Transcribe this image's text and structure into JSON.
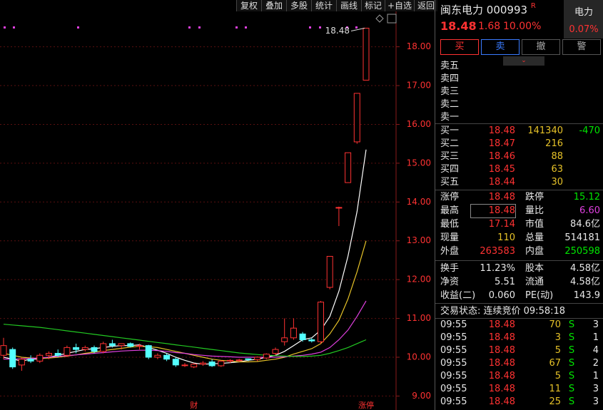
{
  "toolbar": [
    "复权",
    "叠加",
    "多股",
    "统计",
    "画线",
    "标记",
    "+自选",
    "返回"
  ],
  "chart_data": {
    "type": "candlestick",
    "open": [
      10.05,
      10.2,
      9.8,
      9.95,
      9.9,
      10.05,
      10.1,
      10.05,
      10.25,
      10.2,
      10.25,
      10.15,
      10.35,
      10.3,
      10.35,
      10.28,
      10.3,
      10.0,
      10.05,
      9.95,
      9.8,
      9.75,
      9.82,
      9.88,
      9.78,
      9.9,
      9.92,
      9.96,
      9.94,
      9.98,
      10.1,
      10.4,
      10.5,
      10.6,
      10.45,
      10.4,
      11.8,
      13.86,
      14.5,
      15.55,
      17.14
    ],
    "high": [
      10.5,
      10.25,
      10.0,
      10.05,
      10.1,
      10.15,
      10.2,
      10.3,
      10.35,
      10.3,
      10.3,
      10.4,
      10.45,
      10.35,
      10.38,
      10.35,
      10.32,
      10.1,
      10.1,
      10.0,
      9.85,
      9.85,
      9.9,
      9.95,
      9.92,
      9.95,
      9.96,
      9.97,
      10.02,
      10.1,
      10.25,
      11.0,
      11.0,
      10.65,
      10.5,
      11.45,
      12.6,
      13.88,
      15.27,
      16.8,
      18.48
    ],
    "low": [
      9.95,
      9.7,
      9.65,
      9.85,
      9.85,
      9.95,
      10.0,
      10.0,
      10.1,
      10.15,
      10.1,
      10.1,
      10.25,
      10.2,
      10.25,
      10.2,
      9.95,
      9.95,
      9.9,
      9.75,
      9.75,
      9.72,
      9.78,
      9.75,
      9.75,
      9.85,
      9.88,
      9.9,
      9.9,
      9.95,
      10.05,
      10.3,
      10.45,
      10.4,
      10.38,
      10.35,
      11.75,
      13.38,
      14.5,
      15.5,
      17.14
    ],
    "close": [
      10.3,
      9.75,
      9.95,
      9.9,
      10.05,
      10.1,
      10.05,
      10.25,
      10.2,
      10.25,
      10.15,
      10.35,
      10.3,
      10.35,
      10.28,
      10.3,
      10.0,
      10.05,
      9.95,
      9.8,
      9.8,
      9.82,
      9.85,
      9.78,
      9.9,
      9.92,
      9.93,
      9.94,
      10.0,
      10.08,
      10.2,
      10.5,
      10.75,
      10.45,
      10.42,
      11.42,
      12.6,
      13.86,
      15.27,
      16.8,
      18.48
    ],
    "up_color": "#ff3232",
    "down_color": "#54ffff",
    "series": [
      {
        "color": "#ffffff",
        "values": [
          10.0,
          9.95,
          9.9,
          9.95,
          9.95,
          10.0,
          10.05,
          10.1,
          10.15,
          10.2,
          10.22,
          10.25,
          10.28,
          10.3,
          10.3,
          10.32,
          10.25,
          10.18,
          10.1,
          10.0,
          9.92,
          9.85,
          9.82,
          9.83,
          9.84,
          9.86,
          9.88,
          9.92,
          9.95,
          10.0,
          10.05,
          10.15,
          10.3,
          10.45,
          10.5,
          10.7,
          11.05,
          11.7,
          12.6,
          13.75,
          15.35
        ]
      },
      {
        "color": "#e6c228",
        "values": [
          10.1,
          10.05,
          10.0,
          9.98,
          9.97,
          9.98,
          10.0,
          10.03,
          10.06,
          10.1,
          10.13,
          10.17,
          10.2,
          10.23,
          10.26,
          10.28,
          10.27,
          10.25,
          10.2,
          10.15,
          10.1,
          10.05,
          10.0,
          9.95,
          9.92,
          9.9,
          9.88,
          9.88,
          9.89,
          9.92,
          9.95,
          10.0,
          10.08,
          10.15,
          10.22,
          10.35,
          10.6,
          10.95,
          11.5,
          12.2,
          13.0
        ]
      },
      {
        "color": "#e040e0",
        "values": [
          9.95,
          9.95,
          9.96,
          9.97,
          9.98,
          10.0,
          10.02,
          10.04,
          10.06,
          10.08,
          10.1,
          10.12,
          10.14,
          10.16,
          10.17,
          10.18,
          10.18,
          10.17,
          10.15,
          10.12,
          10.1,
          10.07,
          10.05,
          10.03,
          10.02,
          10.01,
          10.0,
          10.0,
          10.0,
          10.0,
          10.0,
          10.01,
          10.03,
          10.05,
          10.08,
          10.13,
          10.25,
          10.45,
          10.7,
          11.05,
          11.45
        ]
      },
      {
        "color": "#22c822",
        "values": [
          10.85,
          10.83,
          10.81,
          10.79,
          10.77,
          10.74,
          10.71,
          10.68,
          10.65,
          10.62,
          10.59,
          10.56,
          10.53,
          10.5,
          10.47,
          10.44,
          10.41,
          10.38,
          10.35,
          10.32,
          10.29,
          10.26,
          10.23,
          10.2,
          10.17,
          10.14,
          10.11,
          10.09,
          10.07,
          10.05,
          10.04,
          10.03,
          10.02,
          10.02,
          10.03,
          10.05,
          10.1,
          10.17,
          10.25,
          10.35,
          10.45
        ]
      }
    ],
    "ylim": [
      8.64,
      18.93
    ],
    "yticks": [
      {
        "value": 9,
        "label": "9.00"
      },
      {
        "value": 10,
        "label": "10.00"
      },
      {
        "value": 11,
        "label": "11.00"
      },
      {
        "value": 12,
        "label": "12.00"
      },
      {
        "value": 13,
        "label": "13.00"
      },
      {
        "value": 14,
        "label": "14.00"
      },
      {
        "value": 15,
        "label": "15.00"
      },
      {
        "value": 16,
        "label": "16.00"
      },
      {
        "value": 17,
        "label": "17.00"
      },
      {
        "value": 18,
        "label": "18.00"
      }
    ],
    "grid": true,
    "high_marker": {
      "value": 18.48,
      "label": "18.48"
    },
    "events": [
      {
        "index": 21,
        "label": "财"
      },
      {
        "index": 40,
        "label": "涨停"
      }
    ]
  },
  "quote": {
    "name": "闽东电力",
    "code": "000993",
    "flag": "R",
    "sector": "电力",
    "sector_change": "0.07%",
    "price": "18.48",
    "change": "1.68",
    "change_pct": "10.00%"
  },
  "buttons": [
    "买",
    "卖",
    "撤",
    "警"
  ],
  "asks": [
    "卖五",
    "卖四",
    "卖三",
    "卖二",
    "卖一"
  ],
  "bids": [
    [
      "买一",
      "18.48",
      "141340",
      "-470"
    ],
    [
      "买二",
      "18.47",
      "216"
    ],
    [
      "买三",
      "18.46",
      "88"
    ],
    [
      "买四",
      "18.45",
      "63"
    ],
    [
      "买五",
      "18.44",
      "30"
    ]
  ],
  "stats": [
    [
      {
        "label": "涨停",
        "value": "18.48",
        "color": "#ff3232"
      },
      {
        "label": "跌停",
        "value": "15.12",
        "color": "#00e600"
      }
    ],
    [
      {
        "label": "最高",
        "value": "18.48",
        "color": "#ff3232"
      },
      {
        "label": "量比",
        "value": "6.60",
        "color": "#e040e0"
      }
    ],
    [
      {
        "label": "最低",
        "value": "17.14",
        "color": "#ff3232"
      },
      {
        "label": "市值",
        "value": "84.6亿",
        "color": "#e8e8e8"
      }
    ],
    [
      {
        "label": "现量",
        "value": "110",
        "color": "#e6c228"
      },
      {
        "label": "总量",
        "value": "514181",
        "color": "#e8e8e8"
      }
    ],
    [
      {
        "label": "外盘",
        "value": "263583",
        "color": "#ff3232"
      },
      {
        "label": "内盘",
        "value": "250598",
        "color": "#00e600"
      }
    ],
    [
      {
        "label": "换手",
        "value": "11.23%",
        "color": "#e8e8e8"
      },
      {
        "label": "股本",
        "value": "4.58亿",
        "color": "#e8e8e8"
      }
    ],
    [
      {
        "label": "净资",
        "value": "5.51",
        "color": "#e8e8e8"
      },
      {
        "label": "流通",
        "value": "4.58亿",
        "color": "#e8e8e8"
      }
    ],
    [
      {
        "label": "收益(二)",
        "value": "0.060",
        "color": "#e8e8e8"
      },
      {
        "label": "PE(动)",
        "value": "143.9",
        "color": "#e8e8e8"
      }
    ]
  ],
  "status": "交易状态: 连续竞价 09:58:18",
  "ticks": [
    [
      "09:55",
      "18.48",
      "70",
      "S",
      "3"
    ],
    [
      "09:55",
      "18.48",
      "3",
      "S",
      "1"
    ],
    [
      "09:55",
      "18.48",
      "5",
      "S",
      "4"
    ],
    [
      "09:55",
      "18.48",
      "67",
      "S",
      "2"
    ],
    [
      "09:55",
      "18.48",
      "5",
      "S",
      "1"
    ],
    [
      "09:55",
      "18.48",
      "11",
      "S",
      "3"
    ],
    [
      "09:55",
      "18.48",
      "25",
      "S",
      "3"
    ]
  ]
}
